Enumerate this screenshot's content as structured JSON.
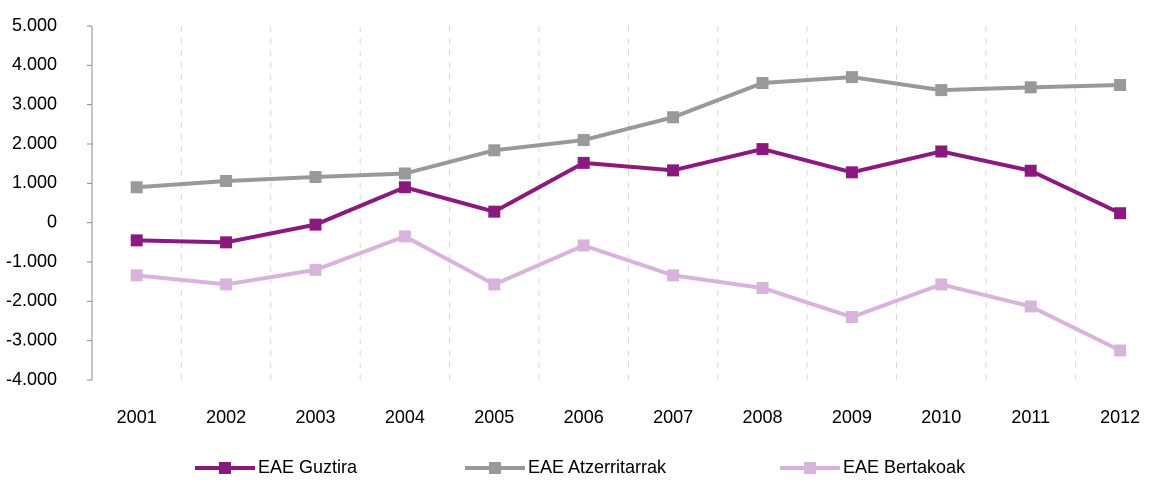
{
  "chart_data": {
    "type": "line",
    "categories": [
      "2001",
      "2002",
      "2003",
      "2004",
      "2005",
      "2006",
      "2007",
      "2008",
      "2009",
      "2010",
      "2011",
      "2012"
    ],
    "series": [
      {
        "name": "EAE Guztira",
        "color": "#8b1a7e",
        "values": [
          -450,
          -500,
          -50,
          900,
          280,
          1520,
          1330,
          1870,
          1280,
          1810,
          1320,
          240
        ]
      },
      {
        "name": "EAE Atzerritarrak",
        "color": "#999999",
        "values": [
          900,
          1060,
          1160,
          1250,
          1840,
          2100,
          2680,
          3550,
          3700,
          3370,
          3440,
          3500
        ]
      },
      {
        "name": "EAE Bertakoak",
        "color": "#d8b4dc",
        "values": [
          -1340,
          -1570,
          -1200,
          -350,
          -1570,
          -580,
          -1340,
          -1660,
          -2400,
          -1570,
          -2130,
          -3250
        ]
      }
    ],
    "ylim": [
      -4000,
      5000
    ],
    "yticks": [
      {
        "value": -4000,
        "label": "-4.000"
      },
      {
        "value": -3000,
        "label": "-3.000"
      },
      {
        "value": -2000,
        "label": "-2.000"
      },
      {
        "value": -1000,
        "label": "-1.000"
      },
      0,
      {
        "value": 1000,
        "label": "1.000"
      },
      {
        "value": 2000,
        "label": "2.000"
      },
      {
        "value": 3000,
        "label": "3.000"
      },
      {
        "value": 4000,
        "label": "4.000"
      },
      {
        "value": 5000,
        "label": "5.000"
      }
    ],
    "legend": "bottom"
  }
}
